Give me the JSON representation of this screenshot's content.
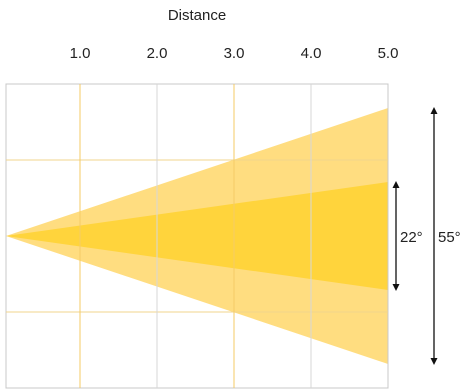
{
  "title": "Distance",
  "distance_ticks": [
    "1.0",
    "2.0",
    "3.0",
    "4.0",
    "5.0"
  ],
  "beams": [
    {
      "angle_label": "55°",
      "angle_deg": 55,
      "color": "#FFDD80"
    },
    {
      "angle_label": "22°",
      "angle_deg": 22,
      "color": "#FFD43C"
    }
  ],
  "colors": {
    "grid_horizontal": "#F2D58C",
    "grid_vertical_gray": "#D7D7D7",
    "grid_vertical_yellow": "#F4CB66",
    "border": "#C8C8C8",
    "arrow": "#111111"
  }
}
